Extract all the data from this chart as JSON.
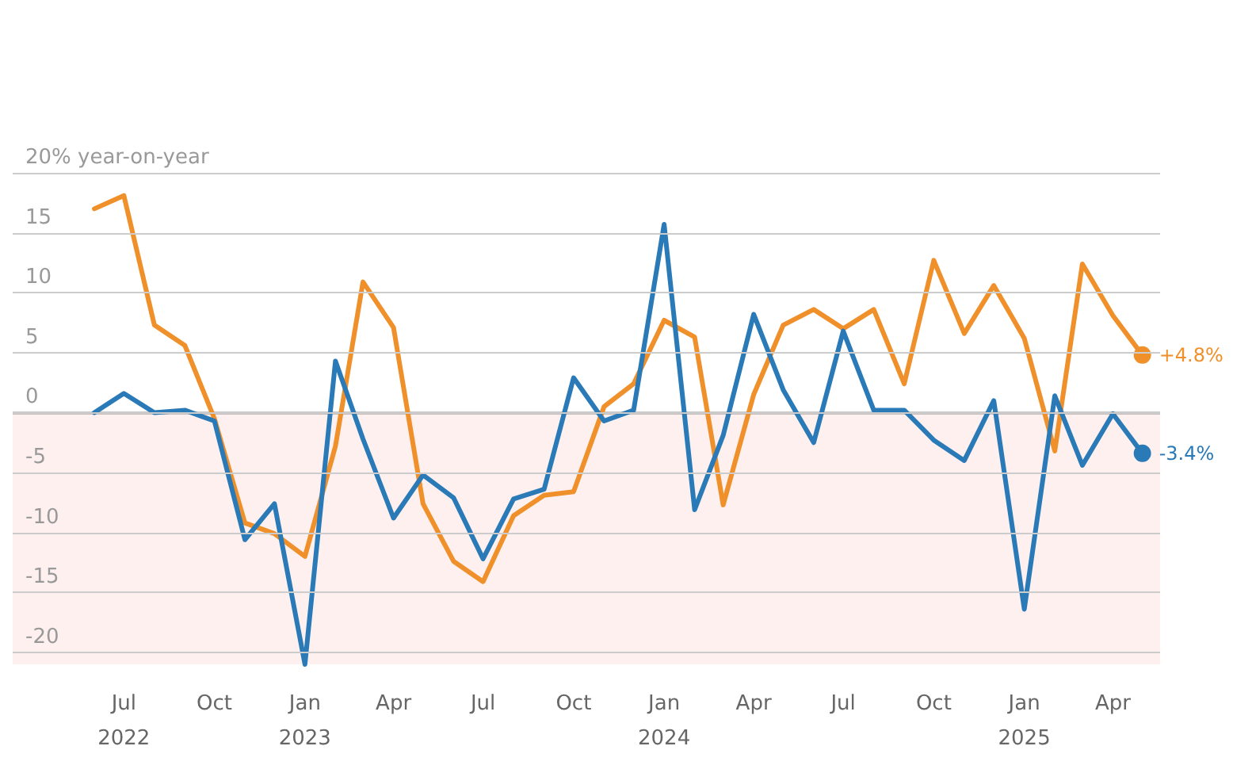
{
  "chart_data": {
    "type": "line",
    "x": [
      "2022-06",
      "2022-07",
      "2022-08",
      "2022-09",
      "2022-10",
      "2022-11",
      "2022-12",
      "2023-01",
      "2023-02",
      "2023-03",
      "2023-04",
      "2023-05",
      "2023-06",
      "2023-07",
      "2023-08",
      "2023-09",
      "2023-10",
      "2023-11",
      "2023-12",
      "2024-01",
      "2024-02",
      "2024-03",
      "2024-04",
      "2024-05",
      "2024-06",
      "2024-07",
      "2024-08",
      "2024-09",
      "2024-10",
      "2024-11",
      "2024-12",
      "2025-01",
      "2025-02",
      "2025-03",
      "2025-04",
      "2025-05"
    ],
    "series": [
      {
        "color": "#f0902a",
        "values": [
          17.0,
          18.1,
          7.3,
          5.6,
          -0.5,
          -9.2,
          -10.1,
          -12.0,
          -2.8,
          10.9,
          7.1,
          -7.6,
          -12.4,
          -14.1,
          -8.6,
          -6.9,
          -6.6,
          0.5,
          2.4,
          7.7,
          6.3,
          -7.7,
          1.5,
          7.3,
          8.6,
          7.0,
          8.6,
          2.4,
          12.7,
          6.6,
          10.6,
          6.2,
          -3.2,
          12.4,
          8.1,
          4.8
        ],
        "value_labels": [
          null,
          null,
          null,
          null,
          null,
          null,
          null,
          null,
          null,
          null,
          null,
          null,
          null,
          null,
          null,
          null,
          null,
          null,
          null,
          null,
          null,
          null,
          null,
          null,
          null,
          null,
          null,
          null,
          null,
          null,
          null,
          null,
          null,
          null,
          null,
          "+4.8%"
        ]
      },
      {
        "color": "#2a7ab8",
        "values": [
          0.0,
          1.6,
          0.0,
          0.2,
          -0.7,
          -10.6,
          -7.6,
          -21.0,
          4.3,
          -2.2,
          -8.8,
          -5.2,
          -7.1,
          -12.2,
          -7.2,
          -6.4,
          2.9,
          -0.7,
          0.2,
          15.7,
          -8.1,
          -1.9,
          8.2,
          1.9,
          -2.5,
          6.8,
          0.2,
          0.2,
          -2.3,
          -4.0,
          1.0,
          -16.4,
          1.4,
          -4.4,
          -0.1,
          -3.4
        ],
        "value_labels": [
          null,
          null,
          null,
          null,
          null,
          null,
          null,
          null,
          null,
          null,
          null,
          null,
          null,
          null,
          null,
          null,
          null,
          null,
          null,
          null,
          null,
          null,
          null,
          null,
          null,
          null,
          null,
          null,
          null,
          null,
          null,
          null,
          null,
          null,
          null,
          "-3.4%"
        ]
      }
    ],
    "xlim": [
      "2022-03-10",
      "2025-05-19"
    ],
    "xticks": [
      {
        "value": "2022-07",
        "label": "Jul\n2022"
      },
      {
        "value": "2022-10",
        "label": "Oct"
      },
      {
        "value": "2023-01",
        "label": "Jan\n2023"
      },
      {
        "value": "2023-04",
        "label": "Apr"
      },
      {
        "value": "2023-07",
        "label": "Jul"
      },
      {
        "value": "2023-10",
        "label": "Oct"
      },
      {
        "value": "2024-01",
        "label": "Jan\n2024"
      },
      {
        "value": "2024-04",
        "label": "Apr"
      },
      {
        "value": "2024-07",
        "label": "Jul"
      },
      {
        "value": "2024-10",
        "label": "Oct"
      },
      {
        "value": "2025-01",
        "label": "Jan\n2025"
      },
      {
        "value": "2025-04",
        "label": "Apr"
      }
    ],
    "ylim": [
      -21,
      20
    ],
    "yticks": [
      -20,
      -15,
      -10,
      -5,
      0,
      5,
      10,
      15,
      {
        "value": 20,
        "label": "20% year-on-year"
      }
    ],
    "grid": "y",
    "marker": "none",
    "line_style": "solid",
    "ref_lines": [
      {
        "axis": "y",
        "value": 0,
        "color": "#222222"
      }
    ],
    "bands": [
      {
        "axis": "y",
        "from": -21,
        "to": 0,
        "color": "#fdf0ef"
      }
    ]
  }
}
